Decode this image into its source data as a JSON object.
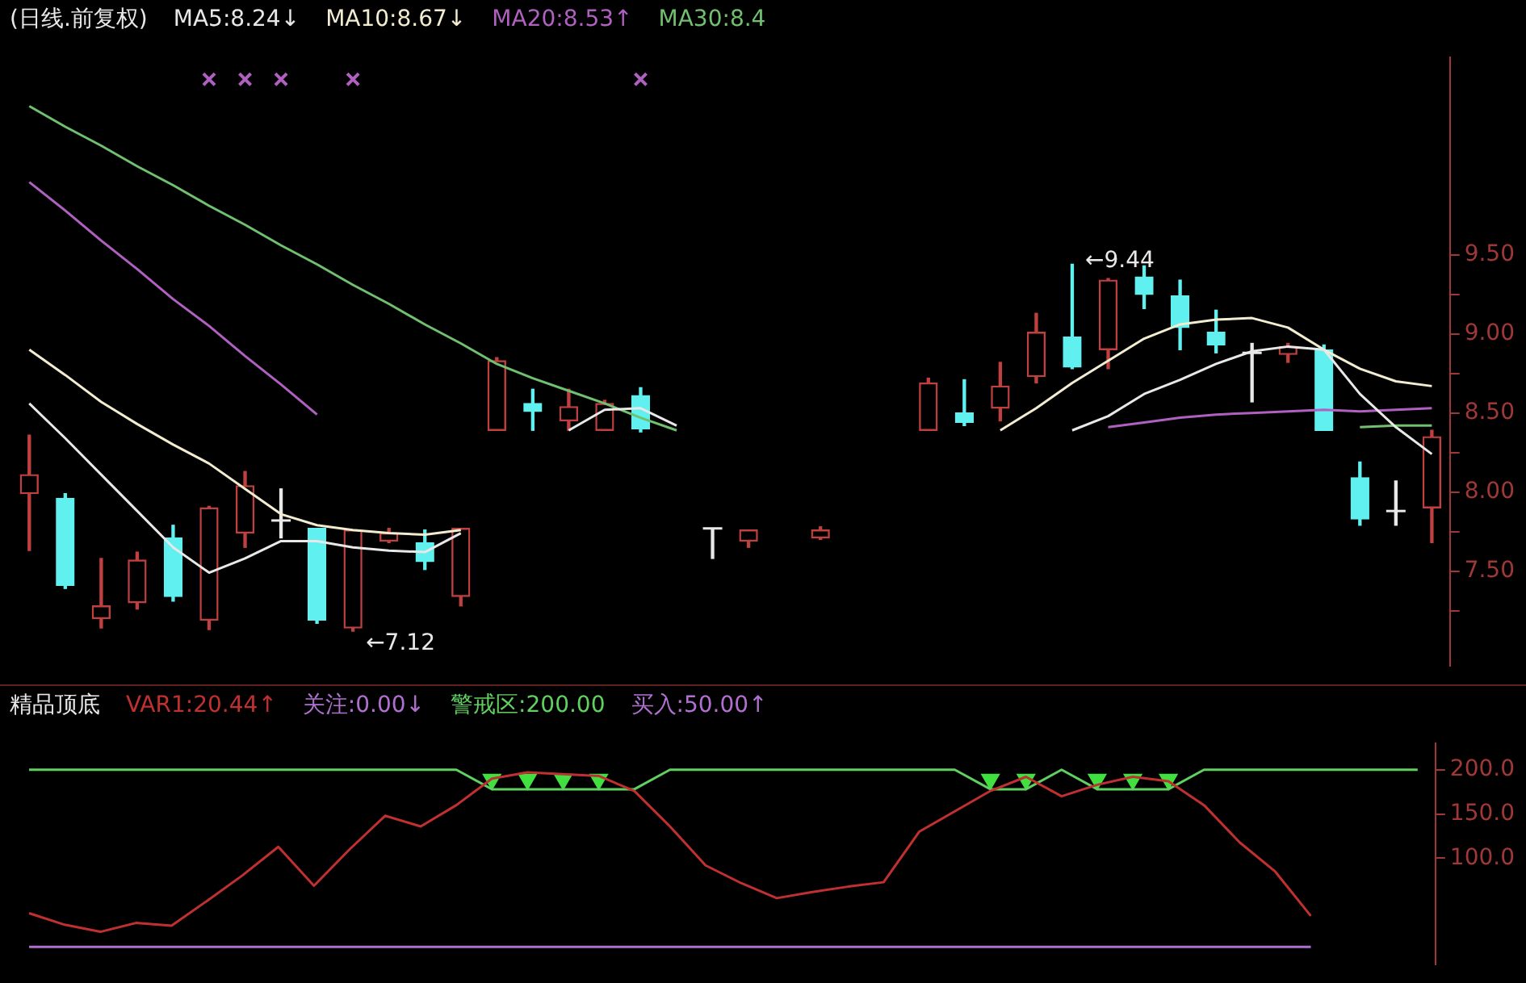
{
  "chart_data": [
    {
      "type": "candlestick",
      "title": "(日线.前复权)",
      "categories": [
        null,
        null,
        null,
        null,
        null,
        null,
        null,
        null,
        null,
        null,
        null,
        null,
        null,
        null,
        null,
        null,
        null,
        null,
        null,
        null,
        null,
        null,
        null,
        null,
        null,
        null,
        null,
        null,
        null,
        null,
        null,
        null,
        null,
        null,
        null,
        null,
        null,
        null,
        null,
        null
      ],
      "ohlc": [
        [
          7.99,
          8.36,
          7.63,
          8.11
        ],
        [
          7.96,
          7.99,
          7.39,
          7.41
        ],
        [
          7.2,
          7.58,
          7.14,
          7.28
        ],
        [
          7.3,
          7.62,
          7.26,
          7.57
        ],
        [
          7.71,
          7.79,
          7.31,
          7.34
        ],
        [
          7.19,
          7.91,
          7.13,
          7.9
        ],
        [
          7.74,
          8.13,
          7.65,
          8.04
        ],
        [
          7.82,
          8.02,
          7.71,
          7.82
        ],
        [
          7.77,
          7.77,
          7.17,
          7.19
        ],
        [
          7.14,
          7.76,
          7.12,
          7.76
        ],
        [
          7.69,
          7.77,
          7.68,
          7.74
        ],
        [
          7.68,
          7.76,
          7.51,
          7.56
        ],
        [
          7.34,
          7.77,
          7.28,
          7.77
        ],
        [
          8.39,
          8.85,
          8.39,
          8.83
        ],
        [
          8.56,
          8.65,
          8.39,
          8.51
        ],
        [
          8.45,
          8.65,
          8.39,
          8.54
        ],
        [
          8.39,
          8.58,
          8.39,
          8.56
        ],
        [
          8.61,
          8.66,
          8.38,
          8.4
        ],
        null,
        [
          7.77,
          7.77,
          7.58,
          7.77
        ],
        [
          7.69,
          7.76,
          7.65,
          7.76
        ],
        null,
        [
          7.71,
          7.78,
          7.7,
          7.76
        ],
        null,
        null,
        [
          8.39,
          8.72,
          8.39,
          8.69
        ],
        [
          8.5,
          8.71,
          8.42,
          8.44
        ],
        [
          8.53,
          8.82,
          8.45,
          8.67
        ],
        [
          8.73,
          9.13,
          8.69,
          9.01
        ],
        [
          8.98,
          9.44,
          8.78,
          8.79
        ],
        [
          8.9,
          9.35,
          8.78,
          9.34
        ],
        [
          9.36,
          9.43,
          9.16,
          9.25
        ],
        [
          9.24,
          9.34,
          8.9,
          9.04
        ],
        [
          9.01,
          9.15,
          8.88,
          8.93
        ],
        [
          8.88,
          8.94,
          8.57,
          8.88
        ],
        [
          8.87,
          8.94,
          8.82,
          8.92
        ],
        [
          8.9,
          8.93,
          8.39,
          8.39
        ],
        [
          8.09,
          8.19,
          7.79,
          7.83
        ],
        [
          7.88,
          8.07,
          7.79,
          7.88
        ],
        [
          7.9,
          8.39,
          7.68,
          8.35
        ]
      ],
      "colors": [
        "#c04040",
        "#60f0f0",
        "#c04040",
        "#c04040",
        "#60f0f0",
        "#c04040",
        "#c04040",
        "#e8e8e8",
        "#60f0f0",
        "#c04040",
        "#c04040",
        "#60f0f0",
        "#c04040",
        "#c04040",
        "#60f0f0",
        "#c04040",
        "#c04040",
        "#60f0f0",
        null,
        "#e8e8e8",
        "#c04040",
        null,
        "#c04040",
        null,
        null,
        "#c04040",
        "#60f0f0",
        "#c04040",
        "#c04040",
        "#60f0f0",
        "#c04040",
        "#60f0f0",
        "#60f0f0",
        "#60f0f0",
        "#e8e8e8",
        "#c04040",
        "#60f0f0",
        "#60f0f0",
        "#e8e8e8",
        "#c04040"
      ],
      "series": [
        {
          "name": "MA5:8.24↓",
          "type": "line",
          "color": "#e8e8e8",
          "values": [
            8.56,
            8.34,
            8.11,
            7.88,
            7.65,
            7.49,
            7.58,
            7.69,
            7.69,
            7.65,
            7.63,
            7.62,
            7.74,
            null,
            null,
            8.39,
            8.52,
            8.53,
            8.42,
            null,
            null,
            null,
            null,
            null,
            null,
            null,
            null,
            null,
            null,
            8.39,
            8.48,
            8.62,
            8.71,
            8.81,
            8.89,
            8.92,
            8.9,
            8.62,
            8.41,
            8.24
          ]
        },
        {
          "name": "MA10:8.67↓",
          "type": "line",
          "color": "#f2ecd0",
          "values": [
            8.9,
            8.74,
            8.57,
            8.43,
            8.3,
            8.18,
            8.02,
            7.86,
            7.79,
            7.76,
            7.74,
            7.73,
            7.76,
            null,
            null,
            null,
            null,
            null,
            null,
            null,
            null,
            null,
            null,
            null,
            null,
            null,
            null,
            8.39,
            8.53,
            8.69,
            8.83,
            8.97,
            9.06,
            9.09,
            9.1,
            9.04,
            8.9,
            8.78,
            8.7,
            8.67
          ]
        },
        {
          "name": "MA20:8.53↑",
          "type": "line",
          "color": "#b060c0",
          "values": [
            9.96,
            9.78,
            9.59,
            9.41,
            9.22,
            9.05,
            8.86,
            8.68,
            8.49,
            null,
            null,
            null,
            null,
            null,
            null,
            null,
            null,
            null,
            null,
            null,
            null,
            null,
            null,
            null,
            null,
            null,
            null,
            null,
            null,
            null,
            8.41,
            8.44,
            8.47,
            8.49,
            8.5,
            8.51,
            8.52,
            8.51,
            8.52,
            8.53
          ]
        },
        {
          "name": "MA30:8.4",
          "type": "line",
          "color": "#70c070",
          "values": [
            10.44,
            10.31,
            10.19,
            10.06,
            9.94,
            9.81,
            9.69,
            9.56,
            9.44,
            9.31,
            9.19,
            9.06,
            8.94,
            8.81,
            8.72,
            8.64,
            8.56,
            8.47,
            8.39,
            null,
            null,
            null,
            null,
            null,
            null,
            null,
            null,
            null,
            null,
            null,
            null,
            null,
            null,
            null,
            null,
            null,
            null,
            8.41,
            8.42,
            8.42
          ]
        },
        {
          "type": "scatter",
          "marker": "cross",
          "color": "#b060c0",
          "values": [
            null,
            null,
            null,
            null,
            null,
            10.61,
            10.61,
            10.61,
            null,
            10.61,
            null,
            null,
            null,
            null,
            null,
            null,
            null,
            10.61,
            null,
            null,
            null,
            null,
            null,
            null,
            null,
            null,
            null,
            null,
            null,
            null,
            null,
            null,
            null,
            null,
            null,
            null,
            null,
            null,
            null,
            null
          ]
        }
      ],
      "ylim": [
        6.9,
        10.75
      ],
      "yticks": [
        {
          "value": 7.25,
          "label": null
        },
        {
          "value": 7.5,
          "label": "7.50"
        },
        {
          "value": 7.75,
          "label": null
        },
        {
          "value": 8,
          "label": "8.00"
        },
        {
          "value": 8.25,
          "label": null
        },
        {
          "value": 8.5,
          "label": "8.50"
        },
        {
          "value": 8.75,
          "label": null
        },
        {
          "value": 9,
          "label": "9.00"
        },
        {
          "value": 9.25,
          "label": null
        },
        {
          "value": 9.5,
          "label": "9.50"
        }
      ],
      "tick_labels": "y",
      "legend": "top left",
      "annotations": [
        "←7.12",
        "←9.44"
      ]
    },
    {
      "type": "line",
      "title": "精品顶底",
      "categories": [
        null,
        null,
        null,
        null,
        null,
        null,
        null,
        null,
        null,
        null,
        null,
        null,
        null,
        null,
        null,
        null,
        null,
        null,
        null,
        null,
        null,
        null,
        null,
        null,
        null,
        null,
        null,
        null,
        null,
        null,
        null,
        null,
        null,
        null,
        null,
        null,
        null,
        null,
        null,
        null
      ],
      "series": [
        {
          "name": "VAR1:20.44↑",
          "color": "#c03030",
          "values": [
            38,
            25,
            17,
            27,
            24,
            52,
            81,
            113,
            69,
            110,
            148,
            136,
            160,
            190,
            197,
            195,
            193,
            176,
            136,
            92,
            72,
            55,
            62,
            68,
            73,
            130,
            153,
            176,
            192,
            170,
            183,
            192,
            187,
            160,
            118,
            85,
            35,
            null,
            null,
            null
          ]
        },
        {
          "name": "关注:0.00↓",
          "color": "#b070d0",
          "values": [
            0,
            0,
            0,
            0,
            0,
            0,
            0,
            0,
            0,
            0,
            0,
            0,
            0,
            0,
            0,
            0,
            0,
            0,
            0,
            0,
            0,
            0,
            0,
            0,
            0,
            0,
            0,
            0,
            0,
            0,
            0,
            0,
            0,
            0,
            0,
            0,
            0,
            null,
            null,
            null
          ]
        },
        {
          "name": "警戒区:200.00",
          "color": "#60d060",
          "values": [
            200,
            200,
            200,
            200,
            200,
            200,
            200,
            200,
            200,
            200,
            200,
            200,
            200,
            178,
            178,
            178,
            178,
            178,
            200,
            200,
            200,
            200,
            200,
            200,
            200,
            200,
            200,
            178,
            178,
            200,
            178,
            178,
            178,
            200,
            200,
            200,
            200,
            200,
            200,
            200
          ]
        },
        {
          "type": "scatter",
          "marker": "triangle",
          "color": "#40e040",
          "values": [
            null,
            null,
            null,
            null,
            null,
            null,
            null,
            null,
            null,
            null,
            null,
            null,
            null,
            189,
            189,
            189,
            189,
            null,
            null,
            null,
            null,
            null,
            null,
            null,
            null,
            null,
            null,
            189,
            189,
            null,
            189,
            189,
            189,
            null,
            null,
            null,
            null,
            null,
            null,
            null
          ]
        }
      ],
      "ylim": [
        -20,
        230
      ],
      "yticks": [
        {
          "value": 100,
          "label": "100.0"
        },
        {
          "value": 150,
          "label": "150.0"
        },
        {
          "value": 200,
          "label": "200.0"
        }
      ],
      "tick_labels": "y",
      "legend": "top left",
      "annotations": [
        "买入:50.00↑"
      ]
    }
  ]
}
